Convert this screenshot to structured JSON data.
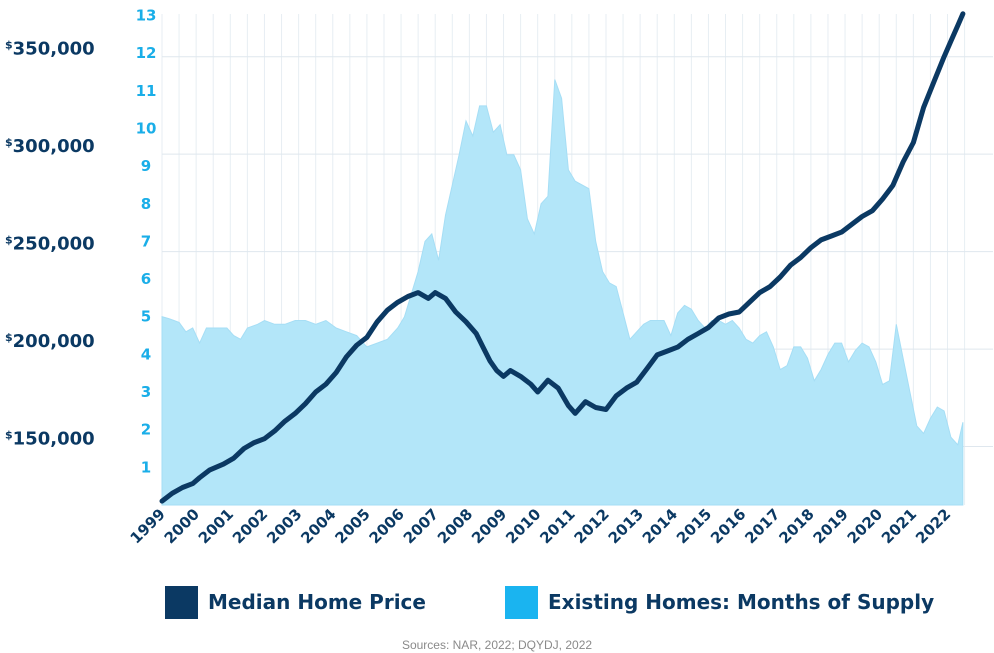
{
  "chart_data": {
    "type": "area+line",
    "title": "",
    "source": "Sources: NAR, 2022; DQYDJ, 2022",
    "x_ticks": [
      "1999",
      "2000",
      "2001",
      "2002",
      "2003",
      "2004",
      "2005",
      "2006",
      "2007",
      "2008",
      "2009",
      "2010",
      "2011",
      "2012",
      "2013",
      "2014",
      "2015",
      "2016",
      "2017",
      "2018",
      "2019",
      "2020",
      "2021",
      "2022"
    ],
    "y_left": {
      "min": 120000,
      "max": 375000,
      "ticks": [
        150000,
        200000,
        250000,
        300000,
        350000
      ],
      "tick_labels": [
        "150,000",
        "200,000",
        "250,000",
        "300,000",
        "350,000"
      ],
      "prefix": "$"
    },
    "y_right": {
      "min": 0,
      "max": 13.2,
      "ticks": [
        1,
        2,
        3,
        4,
        5,
        6,
        7,
        8,
        9,
        10,
        11,
        12,
        13
      ]
    },
    "grid": true,
    "legend_position": "bottom",
    "series": [
      {
        "name": "Existing Homes: Months of Supply",
        "kind": "area",
        "axis": "right",
        "color": "#b3e6f9",
        "legend_color": "#1ab4f0",
        "points": [
          [
            1999.0,
            5.0
          ],
          [
            1999.2,
            4.95
          ],
          [
            1999.35,
            4.9
          ],
          [
            1999.5,
            4.85
          ],
          [
            1999.7,
            4.6
          ],
          [
            1999.9,
            4.7
          ],
          [
            2000.1,
            4.3
          ],
          [
            2000.3,
            4.7
          ],
          [
            2000.6,
            4.7
          ],
          [
            2000.9,
            4.7
          ],
          [
            2001.1,
            4.5
          ],
          [
            2001.3,
            4.4
          ],
          [
            2001.5,
            4.7
          ],
          [
            2001.8,
            4.8
          ],
          [
            2002.0,
            4.9
          ],
          [
            2002.3,
            4.8
          ],
          [
            2002.6,
            4.8
          ],
          [
            2002.9,
            4.9
          ],
          [
            2003.2,
            4.9
          ],
          [
            2003.5,
            4.8
          ],
          [
            2003.8,
            4.9
          ],
          [
            2004.1,
            4.7
          ],
          [
            2004.4,
            4.6
          ],
          [
            2004.7,
            4.5
          ],
          [
            2005.0,
            4.2
          ],
          [
            2005.3,
            4.3
          ],
          [
            2005.6,
            4.4
          ],
          [
            2005.9,
            4.7
          ],
          [
            2006.1,
            5.0
          ],
          [
            2006.3,
            5.6
          ],
          [
            2006.5,
            6.2
          ],
          [
            2006.7,
            7.0
          ],
          [
            2006.9,
            7.2
          ],
          [
            2007.1,
            6.5
          ],
          [
            2007.3,
            7.7
          ],
          [
            2007.5,
            8.5
          ],
          [
            2007.7,
            9.3
          ],
          [
            2007.9,
            10.2
          ],
          [
            2008.1,
            9.8
          ],
          [
            2008.3,
            10.6
          ],
          [
            2008.5,
            10.6
          ],
          [
            2008.7,
            9.9
          ],
          [
            2008.9,
            10.1
          ],
          [
            2009.1,
            9.3
          ],
          [
            2009.3,
            9.3
          ],
          [
            2009.5,
            8.9
          ],
          [
            2009.7,
            7.6
          ],
          [
            2009.9,
            7.2
          ],
          [
            2010.1,
            8.0
          ],
          [
            2010.3,
            8.2
          ],
          [
            2010.5,
            11.3
          ],
          [
            2010.7,
            10.8
          ],
          [
            2010.9,
            8.9
          ],
          [
            2011.1,
            8.6
          ],
          [
            2011.3,
            8.5
          ],
          [
            2011.5,
            8.4
          ],
          [
            2011.7,
            7.0
          ],
          [
            2011.9,
            6.2
          ],
          [
            2012.1,
            5.9
          ],
          [
            2012.3,
            5.8
          ],
          [
            2012.5,
            5.1
          ],
          [
            2012.7,
            4.4
          ],
          [
            2012.9,
            4.6
          ],
          [
            2013.1,
            4.8
          ],
          [
            2013.3,
            4.9
          ],
          [
            2013.5,
            4.9
          ],
          [
            2013.7,
            4.9
          ],
          [
            2013.9,
            4.5
          ],
          [
            2014.1,
            5.1
          ],
          [
            2014.3,
            5.3
          ],
          [
            2014.5,
            5.2
          ],
          [
            2014.7,
            4.9
          ],
          [
            2014.9,
            4.7
          ],
          [
            2015.1,
            4.9
          ],
          [
            2015.3,
            4.9
          ],
          [
            2015.5,
            4.8
          ],
          [
            2015.7,
            4.9
          ],
          [
            2015.9,
            4.7
          ],
          [
            2016.1,
            4.4
          ],
          [
            2016.3,
            4.3
          ],
          [
            2016.5,
            4.5
          ],
          [
            2016.7,
            4.6
          ],
          [
            2016.9,
            4.2
          ],
          [
            2017.1,
            3.6
          ],
          [
            2017.3,
            3.7
          ],
          [
            2017.5,
            4.2
          ],
          [
            2017.7,
            4.2
          ],
          [
            2017.9,
            3.9
          ],
          [
            2018.1,
            3.3
          ],
          [
            2018.3,
            3.6
          ],
          [
            2018.5,
            4.0
          ],
          [
            2018.7,
            4.3
          ],
          [
            2018.9,
            4.3
          ],
          [
            2019.1,
            3.8
          ],
          [
            2019.3,
            4.1
          ],
          [
            2019.5,
            4.3
          ],
          [
            2019.7,
            4.2
          ],
          [
            2019.9,
            3.8
          ],
          [
            2020.1,
            3.2
          ],
          [
            2020.3,
            3.3
          ],
          [
            2020.5,
            4.8
          ],
          [
            2020.7,
            3.9
          ],
          [
            2020.9,
            3.0
          ],
          [
            2021.1,
            2.1
          ],
          [
            2021.3,
            1.9
          ],
          [
            2021.5,
            2.3
          ],
          [
            2021.7,
            2.6
          ],
          [
            2021.9,
            2.5
          ],
          [
            2022.1,
            1.8
          ],
          [
            2022.3,
            1.6
          ],
          [
            2022.45,
            2.2
          ]
        ]
      },
      {
        "name": "Median Home Price",
        "kind": "line",
        "axis": "left",
        "color": "#0b3963",
        "points": [
          [
            1999.0,
            122000
          ],
          [
            1999.3,
            126000
          ],
          [
            1999.6,
            129000
          ],
          [
            1999.9,
            131000
          ],
          [
            2000.1,
            134000
          ],
          [
            2000.4,
            138000
          ],
          [
            2000.8,
            141000
          ],
          [
            2001.1,
            144000
          ],
          [
            2001.4,
            149000
          ],
          [
            2001.7,
            152000
          ],
          [
            2002.0,
            154000
          ],
          [
            2002.3,
            158000
          ],
          [
            2002.6,
            163000
          ],
          [
            2002.9,
            167000
          ],
          [
            2003.2,
            172000
          ],
          [
            2003.5,
            178000
          ],
          [
            2003.8,
            182000
          ],
          [
            2004.1,
            188000
          ],
          [
            2004.4,
            196000
          ],
          [
            2004.7,
            202000
          ],
          [
            2005.0,
            206000
          ],
          [
            2005.3,
            214000
          ],
          [
            2005.6,
            220000
          ],
          [
            2005.9,
            224000
          ],
          [
            2006.2,
            227000
          ],
          [
            2006.5,
            229000
          ],
          [
            2006.8,
            226000
          ],
          [
            2007.0,
            229000
          ],
          [
            2007.3,
            226000
          ],
          [
            2007.6,
            219000
          ],
          [
            2007.9,
            214000
          ],
          [
            2008.2,
            208000
          ],
          [
            2008.4,
            201000
          ],
          [
            2008.6,
            194000
          ],
          [
            2008.8,
            189000
          ],
          [
            2009.0,
            186000
          ],
          [
            2009.2,
            189000
          ],
          [
            2009.5,
            186000
          ],
          [
            2009.8,
            182000
          ],
          [
            2010.0,
            178000
          ],
          [
            2010.3,
            184000
          ],
          [
            2010.6,
            180000
          ],
          [
            2010.9,
            171000
          ],
          [
            2011.1,
            167000
          ],
          [
            2011.4,
            173000
          ],
          [
            2011.7,
            170000
          ],
          [
            2012.0,
            169000
          ],
          [
            2012.3,
            176000
          ],
          [
            2012.6,
            180000
          ],
          [
            2012.9,
            183000
          ],
          [
            2013.2,
            190000
          ],
          [
            2013.5,
            197000
          ],
          [
            2013.8,
            199000
          ],
          [
            2014.1,
            201000
          ],
          [
            2014.4,
            205000
          ],
          [
            2014.7,
            208000
          ],
          [
            2015.0,
            211000
          ],
          [
            2015.3,
            216000
          ],
          [
            2015.6,
            218000
          ],
          [
            2015.9,
            219000
          ],
          [
            2016.2,
            224000
          ],
          [
            2016.5,
            229000
          ],
          [
            2016.8,
            232000
          ],
          [
            2017.1,
            237000
          ],
          [
            2017.4,
            243000
          ],
          [
            2017.7,
            247000
          ],
          [
            2018.0,
            252000
          ],
          [
            2018.3,
            256000
          ],
          [
            2018.6,
            258000
          ],
          [
            2018.9,
            260000
          ],
          [
            2019.2,
            264000
          ],
          [
            2019.5,
            268000
          ],
          [
            2019.8,
            271000
          ],
          [
            2020.1,
            277000
          ],
          [
            2020.4,
            284000
          ],
          [
            2020.7,
            296000
          ],
          [
            2021.0,
            306000
          ],
          [
            2021.3,
            324000
          ],
          [
            2021.6,
            337000
          ],
          [
            2021.9,
            350000
          ],
          [
            2022.1,
            358000
          ],
          [
            2022.3,
            366000
          ],
          [
            2022.45,
            372000
          ]
        ]
      }
    ]
  }
}
